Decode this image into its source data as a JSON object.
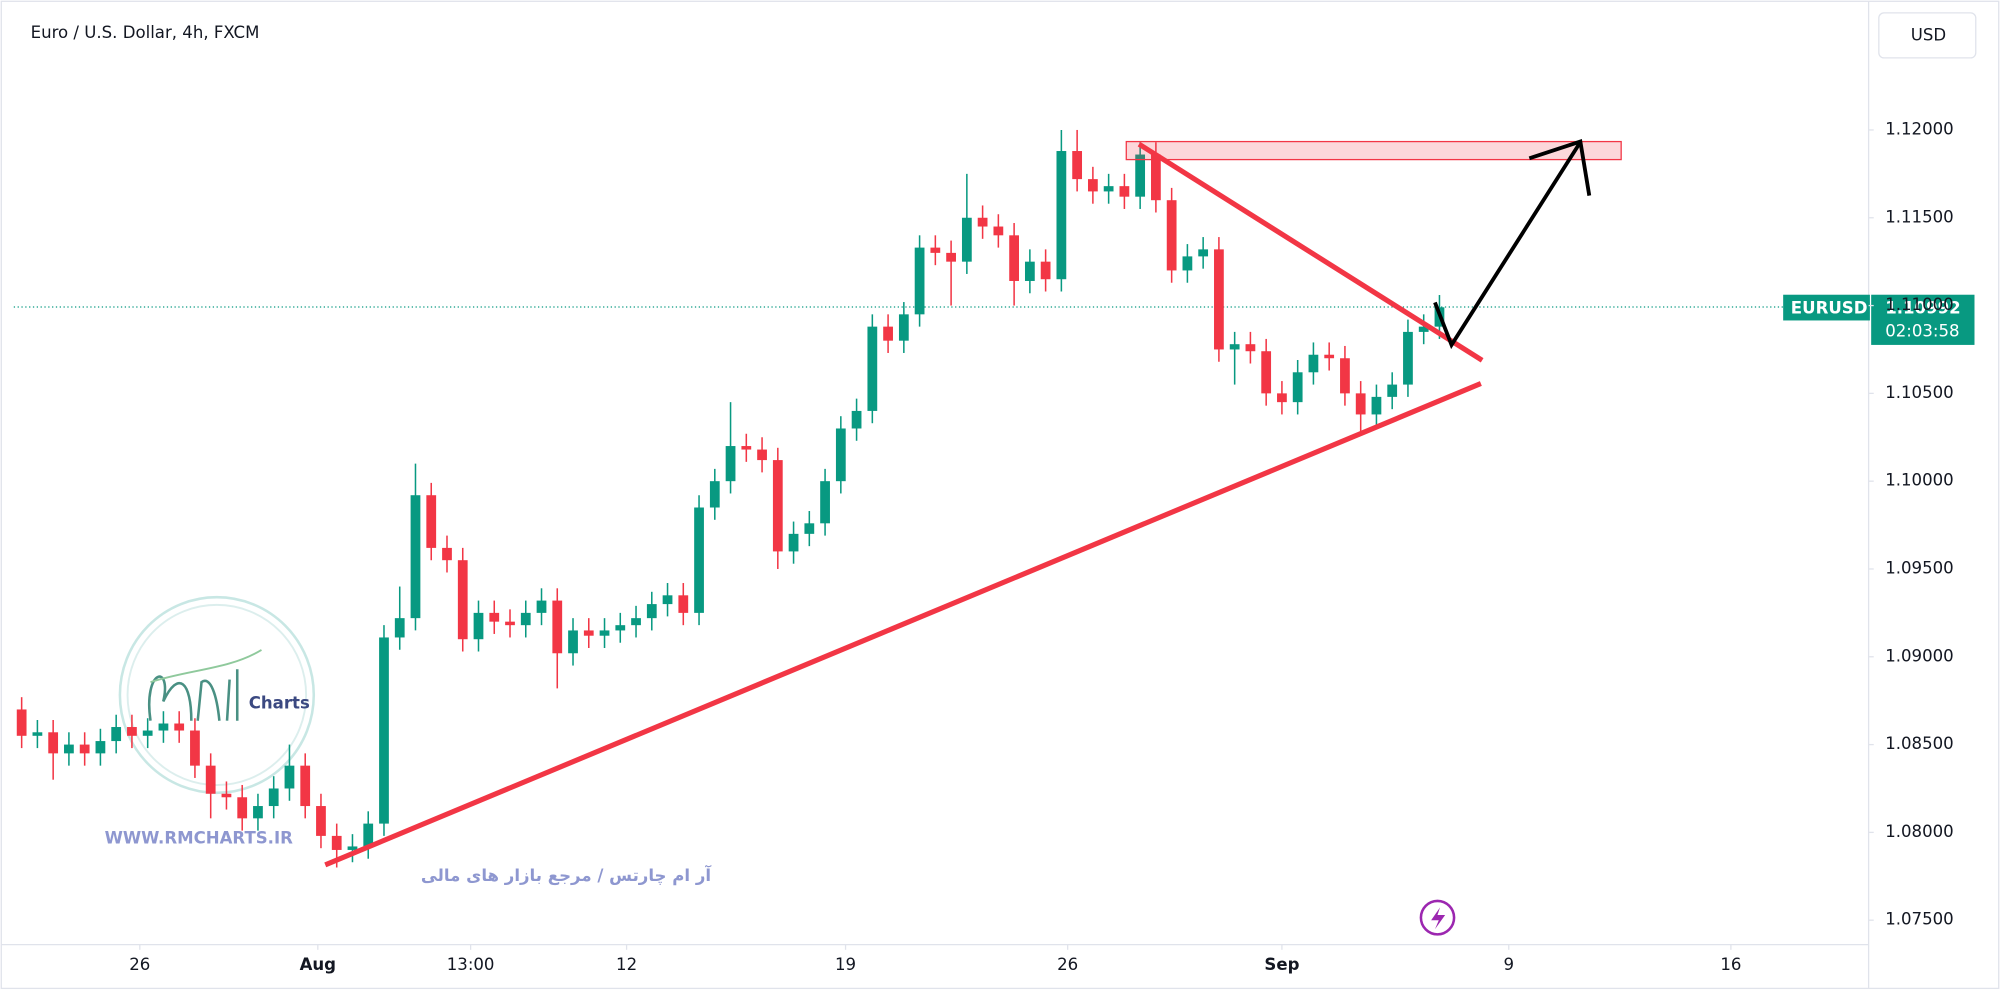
{
  "chart_data": {
    "type": "candlestick",
    "title": "Euro / U.S. Dollar, 4h, FXCM",
    "currency": "USD",
    "series": [
      {
        "name": "EURUSD",
        "up_color": "#089981",
        "down_color": "#f23645",
        "open": [
          1.087,
          1.0855,
          1.0857,
          1.0845,
          1.085,
          1.0845,
          1.0852,
          1.086,
          1.0855,
          1.0858,
          1.0862,
          1.0858,
          1.0838,
          1.0822,
          1.082,
          1.0808,
          1.0815,
          1.0825,
          1.0838,
          1.0815,
          1.0798,
          1.079,
          1.0792,
          1.0805,
          1.0911,
          1.0922,
          1.0992,
          1.0962,
          1.0955,
          1.091,
          1.0925,
          1.092,
          1.0918,
          1.0925,
          1.0932,
          1.0902,
          1.0915,
          1.0912,
          1.0915,
          1.0918,
          1.0922,
          1.093,
          1.0935,
          1.0925,
          1.0985,
          1.1,
          1.102,
          1.1018,
          1.1012,
          1.096,
          1.097,
          1.0976,
          1.1,
          1.103,
          1.104,
          1.1088,
          1.108,
          1.1095,
          1.1133,
          1.113,
          1.1125,
          1.115,
          1.1145,
          1.114,
          1.1114,
          1.1125,
          1.1115,
          1.1188,
          1.1172,
          1.1165,
          1.1168,
          1.1162,
          1.1186,
          1.116,
          1.112,
          1.1128,
          1.1132,
          1.1075,
          1.1078,
          1.1074,
          1.105,
          1.1045,
          1.1062,
          1.1072,
          1.107,
          1.105,
          1.1038,
          1.1048,
          1.1055,
          1.1085,
          1.1088
        ],
        "high": [
          1.0877,
          1.0864,
          1.0864,
          1.0857,
          1.0857,
          1.0859,
          1.0867,
          1.0867,
          1.0865,
          1.0869,
          1.0869,
          1.0865,
          1.0845,
          1.0829,
          1.0827,
          1.0822,
          1.0832,
          1.085,
          1.0845,
          1.0822,
          1.0805,
          1.0799,
          1.0812,
          1.0918,
          1.094,
          1.101,
          1.0999,
          1.0969,
          1.0962,
          1.0932,
          1.0932,
          1.0927,
          1.0932,
          1.0939,
          1.0939,
          1.0922,
          1.0922,
          1.0922,
          1.0925,
          1.0929,
          1.0937,
          1.0942,
          1.0942,
          1.0992,
          1.1007,
          1.1045,
          1.1027,
          1.1025,
          1.1019,
          1.0977,
          1.0983,
          1.1007,
          1.1037,
          1.1047,
          1.1095,
          1.1095,
          1.1102,
          1.114,
          1.114,
          1.1137,
          1.1175,
          1.1157,
          1.1152,
          1.1147,
          1.1132,
          1.1132,
          1.12,
          1.12,
          1.1179,
          1.1175,
          1.1175,
          1.1193,
          1.1193,
          1.1167,
          1.1135,
          1.1139,
          1.1139,
          1.1085,
          1.1085,
          1.1081,
          1.1057,
          1.1069,
          1.1079,
          1.1079,
          1.1077,
          1.1057,
          1.1055,
          1.1062,
          1.1092,
          1.1095,
          1.1106
        ],
        "low": [
          1.0848,
          1.0848,
          1.083,
          1.0838,
          1.0838,
          1.0838,
          1.0845,
          1.0848,
          1.0848,
          1.0851,
          1.0851,
          1.0831,
          1.0808,
          1.0813,
          1.0801,
          1.0801,
          1.0808,
          1.0818,
          1.0808,
          1.0791,
          1.078,
          1.0783,
          1.0785,
          1.0798,
          1.0904,
          1.0915,
          1.0955,
          1.0948,
          1.0903,
          1.0903,
          1.0913,
          1.0911,
          1.0911,
          1.0918,
          1.0882,
          1.0895,
          1.0905,
          1.0905,
          1.0908,
          1.0911,
          1.0915,
          1.0923,
          1.0918,
          1.0918,
          1.0978,
          1.0993,
          1.1011,
          1.1005,
          1.095,
          1.0953,
          1.0963,
          1.0969,
          1.0993,
          1.1023,
          1.1033,
          1.1073,
          1.1073,
          1.1088,
          1.1123,
          1.11,
          1.1118,
          1.1138,
          1.1133,
          1.11,
          1.1107,
          1.1108,
          1.1108,
          1.1165,
          1.1158,
          1.1158,
          1.1155,
          1.1155,
          1.1153,
          1.1113,
          1.1113,
          1.1121,
          1.1068,
          1.1055,
          1.1067,
          1.1043,
          1.1038,
          1.1038,
          1.1055,
          1.1063,
          1.1043,
          1.1028,
          1.1031,
          1.1041,
          1.1048,
          1.1078,
          1.1081
        ],
        "close": [
          1.0855,
          1.0857,
          1.0845,
          1.085,
          1.0845,
          1.0852,
          1.086,
          1.0855,
          1.0858,
          1.0862,
          1.0858,
          1.0838,
          1.0822,
          1.082,
          1.0808,
          1.0815,
          1.0825,
          1.0838,
          1.0815,
          1.0798,
          1.079,
          1.0792,
          1.0805,
          1.0911,
          1.0922,
          1.0992,
          1.0962,
          1.0955,
          1.091,
          1.0925,
          1.092,
          1.0918,
          1.0925,
          1.0932,
          1.0902,
          1.0915,
          1.0912,
          1.0915,
          1.0918,
          1.0922,
          1.093,
          1.0935,
          1.0925,
          1.0985,
          1.1,
          1.102,
          1.1018,
          1.1012,
          1.096,
          1.097,
          1.0976,
          1.1,
          1.103,
          1.104,
          1.1088,
          1.108,
          1.1095,
          1.1133,
          1.113,
          1.1125,
          1.115,
          1.1145,
          1.114,
          1.1114,
          1.1125,
          1.1115,
          1.1188,
          1.1172,
          1.1165,
          1.1168,
          1.1162,
          1.1186,
          1.116,
          1.112,
          1.1128,
          1.1132,
          1.1075,
          1.1078,
          1.1074,
          1.105,
          1.1045,
          1.1062,
          1.1072,
          1.107,
          1.105,
          1.1038,
          1.1048,
          1.1055,
          1.1085,
          1.1088,
          1.1099
        ]
      }
    ],
    "last_price": 1.10992,
    "countdown": "02:03:58",
    "ylim": [
      1.07368,
      1.1274
    ],
    "yticks": [
      {
        "value": 1.075,
        "label": "1.07500"
      },
      {
        "value": 1.08,
        "label": "1.08000"
      },
      {
        "value": 1.085,
        "label": "1.08500"
      },
      {
        "value": 1.09,
        "label": "1.09000"
      },
      {
        "value": 1.095,
        "label": "1.09500"
      },
      {
        "value": 1.1,
        "label": "1.10000"
      },
      {
        "value": 1.105,
        "label": "1.10500"
      },
      {
        "value": 1.11,
        "label": "1.11000"
      },
      {
        "value": 1.115,
        "label": "1.11500"
      },
      {
        "value": 1.12,
        "label": "1.12000"
      }
    ],
    "xlim": [
      -0.5,
      117
    ],
    "xticks": [
      {
        "value": 7.5,
        "label": "26"
      },
      {
        "value": 18.8,
        "label": "Aug"
      },
      {
        "value": 28.5,
        "label": "13:00"
      },
      {
        "value": 38.4,
        "label": "12"
      },
      {
        "value": 52.3,
        "label": "19"
      },
      {
        "value": 66.4,
        "label": "26"
      },
      {
        "value": 80,
        "label": "Sep"
      },
      {
        "value": 94.4,
        "label": "9"
      },
      {
        "value": 108.5,
        "label": "16"
      }
    ],
    "grid": false
  },
  "watermark": {
    "logo": "Charts",
    "url": "WWW.RMCHARTS.IR",
    "tagline": "آر ام چارتس / مرجع بازار های مالی"
  }
}
